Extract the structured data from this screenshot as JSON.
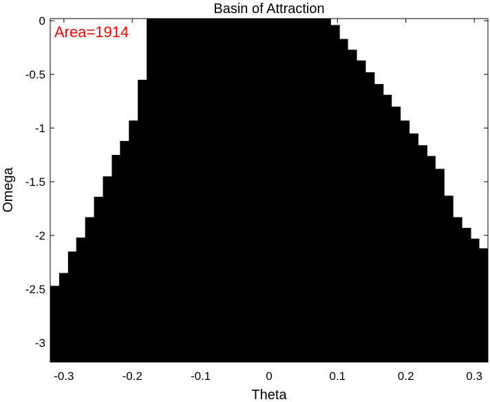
{
  "chart_data": {
    "type": "area",
    "title": "Basin of Attraction",
    "xlabel": "Theta",
    "ylabel": "Omega",
    "xlim": [
      -0.32,
      0.32
    ],
    "ylim": [
      -3.18,
      0.02
    ],
    "xticks": [
      "-0.3",
      "-0.2",
      "-0.1",
      "0",
      "0.1",
      "0.2",
      "0.3"
    ],
    "xtick_values": [
      -0.3,
      -0.2,
      -0.1,
      0,
      0.1,
      0.2,
      0.3
    ],
    "yticks": [
      "0",
      "-0.5",
      "-1",
      "-1.5",
      "-2",
      "-2.5",
      "-3"
    ],
    "ytick_values": [
      0,
      -0.5,
      -1,
      -1.5,
      -2,
      -2.5,
      -3
    ],
    "grid": false,
    "fill_color": "#000000",
    "annotation": {
      "text": "Area=1914",
      "color": "#ff0000"
    },
    "cell_width": 0.0128,
    "basin_columns": {
      "x_start": [
        -0.32,
        -0.307,
        -0.294,
        -0.282,
        -0.269,
        -0.256,
        -0.243,
        -0.23,
        -0.218,
        -0.205,
        -0.192,
        -0.179,
        -0.166,
        -0.154,
        -0.141,
        -0.128,
        -0.115,
        -0.102,
        -0.09,
        -0.077,
        -0.064,
        -0.051,
        -0.038,
        -0.026,
        -0.013,
        0,
        0.013,
        0.026,
        0.038,
        0.051,
        0.064,
        0.077,
        0.09,
        0.102,
        0.115,
        0.128,
        0.141,
        0.154,
        0.166,
        0.179,
        0.192,
        0.205,
        0.218,
        0.23,
        0.243,
        0.256,
        0.269,
        0.282,
        0.294,
        0.307
      ],
      "omega_upper": [
        -2.47,
        -2.35,
        -2.15,
        -2.02,
        -1.83,
        -1.64,
        -1.45,
        -1.25,
        -1.12,
        -0.93,
        -0.55,
        0.02,
        0.02,
        0.02,
        0.02,
        0.02,
        0.02,
        0.02,
        0.02,
        0.02,
        0.02,
        0.02,
        0.02,
        0.02,
        0.02,
        0.02,
        0.02,
        0.02,
        0.02,
        0.02,
        0.02,
        0.02,
        -0.04,
        -0.17,
        -0.27,
        -0.37,
        -0.48,
        -0.59,
        -0.69,
        -0.8,
        -0.93,
        -1.05,
        -1.16,
        -1.26,
        -1.38,
        -1.63,
        -1.83,
        -1.93,
        -2.03,
        -2.12
      ]
    }
  }
}
